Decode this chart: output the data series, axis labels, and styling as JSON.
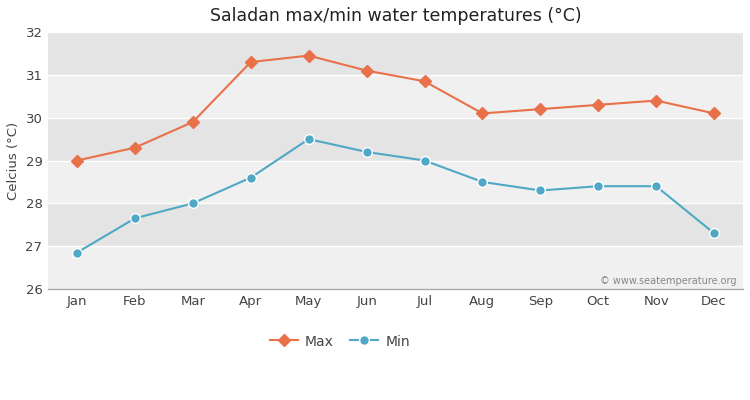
{
  "title": "Saladan max/min water temperatures (°C)",
  "ylabel": "Celcius (°C)",
  "months": [
    "Jan",
    "Feb",
    "Mar",
    "Apr",
    "May",
    "Jun",
    "Jul",
    "Aug",
    "Sep",
    "Oct",
    "Nov",
    "Dec"
  ],
  "max_values": [
    29.0,
    29.3,
    29.9,
    31.3,
    31.45,
    31.1,
    30.85,
    30.1,
    30.2,
    30.3,
    30.4,
    30.1
  ],
  "min_values": [
    26.85,
    27.65,
    28.0,
    28.6,
    29.5,
    29.2,
    29.0,
    28.5,
    28.3,
    28.4,
    28.4,
    27.3
  ],
  "max_color": "#e8714a",
  "min_color": "#4fa8c5",
  "ylim": [
    26,
    32
  ],
  "yticks": [
    26,
    27,
    28,
    29,
    30,
    31,
    32
  ],
  "fig_bg_color": "#ffffff",
  "plot_bg_color": "#f0f0f0",
  "band_light": "#f0f0f0",
  "band_dark": "#e4e4e4",
  "grid_color": "#ffffff",
  "watermark": "© www.seatemperature.org",
  "legend_labels": [
    "Max",
    "Min"
  ]
}
